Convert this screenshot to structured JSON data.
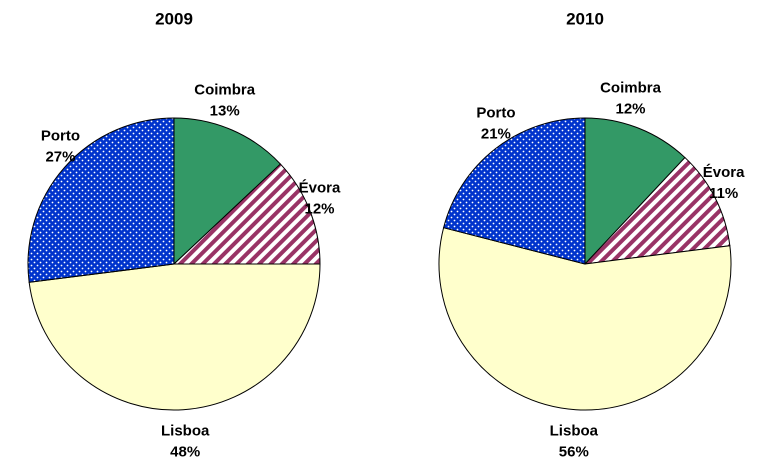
{
  "chart_data": [
    {
      "type": "pie",
      "title": "2009",
      "categories": [
        "Coimbra",
        "Évora",
        "Lisboa",
        "Porto"
      ],
      "values": [
        13,
        12,
        48,
        27
      ],
      "value_labels": [
        "13%",
        "12%",
        "48%",
        "27%"
      ],
      "colors": [
        "#339966",
        "#993366",
        "#ffffcc",
        "#0033cc"
      ],
      "patterns": [
        "solid",
        "hatch",
        "solid",
        "dots"
      ]
    },
    {
      "type": "pie",
      "title": "2010",
      "categories": [
        "Coimbra",
        "Évora",
        "Lisboa",
        "Porto"
      ],
      "values": [
        12,
        11,
        56,
        21
      ],
      "value_labels": [
        "12%",
        "11%",
        "56%",
        "21%"
      ],
      "colors": [
        "#339966",
        "#993366",
        "#ffffcc",
        "#0033cc"
      ],
      "patterns": [
        "solid",
        "hatch",
        "solid",
        "dots"
      ]
    }
  ]
}
